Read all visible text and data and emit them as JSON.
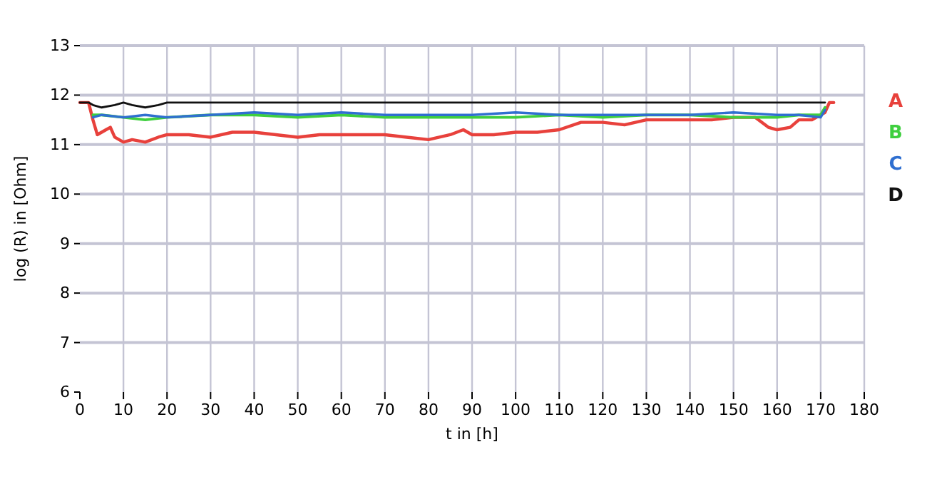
{
  "chart_data": {
    "type": "line",
    "xlabel": "t in [h]",
    "ylabel": "log (R) in [Ohm]",
    "xlim": [
      0,
      180
    ],
    "ylim": [
      6,
      13
    ],
    "xticks": [
      0,
      10,
      20,
      30,
      40,
      50,
      60,
      70,
      80,
      90,
      100,
      110,
      120,
      130,
      140,
      150,
      160,
      170,
      180
    ],
    "yticks": [
      6,
      7,
      8,
      9,
      10,
      11,
      12,
      13
    ],
    "grid": true,
    "legend": "right",
    "marker": "none",
    "line_style": "solid",
    "series": [
      {
        "name": "A",
        "color": "#e8413c",
        "x": [
          0,
          2,
          3,
          4,
          6,
          7,
          8,
          10,
          12,
          15,
          18,
          20,
          25,
          30,
          35,
          40,
          45,
          50,
          55,
          60,
          65,
          70,
          75,
          80,
          85,
          88,
          90,
          95,
          100,
          105,
          110,
          115,
          120,
          125,
          130,
          135,
          140,
          145,
          150,
          155,
          158,
          160,
          163,
          165,
          168,
          170,
          171,
          172,
          173
        ],
        "values": [
          11.85,
          11.85,
          11.5,
          11.2,
          11.3,
          11.35,
          11.15,
          11.05,
          11.1,
          11.05,
          11.15,
          11.2,
          11.2,
          11.15,
          11.25,
          11.25,
          11.2,
          11.15,
          11.2,
          11.2,
          11.2,
          11.2,
          11.15,
          11.1,
          11.2,
          11.3,
          11.2,
          11.2,
          11.25,
          11.25,
          11.3,
          11.45,
          11.45,
          11.4,
          11.5,
          11.5,
          11.5,
          11.5,
          11.55,
          11.55,
          11.35,
          11.3,
          11.35,
          11.5,
          11.5,
          11.6,
          11.65,
          11.85,
          11.85
        ]
      },
      {
        "name": "B",
        "color": "#3fcf3f",
        "x": [
          3,
          5,
          10,
          15,
          20,
          30,
          40,
          50,
          60,
          70,
          80,
          90,
          100,
          110,
          120,
          130,
          140,
          150,
          160,
          165,
          170,
          171
        ],
        "values": [
          11.6,
          11.6,
          11.55,
          11.5,
          11.55,
          11.6,
          11.6,
          11.55,
          11.6,
          11.55,
          11.55,
          11.55,
          11.55,
          11.6,
          11.55,
          11.6,
          11.6,
          11.55,
          11.55,
          11.6,
          11.6,
          11.75
        ]
      },
      {
        "name": "C",
        "color": "#2f6fd0",
        "x": [
          3,
          5,
          10,
          15,
          20,
          30,
          40,
          50,
          60,
          70,
          80,
          90,
          100,
          110,
          120,
          130,
          140,
          150,
          160,
          165,
          170,
          171
        ],
        "values": [
          11.55,
          11.6,
          11.55,
          11.6,
          11.55,
          11.6,
          11.65,
          11.6,
          11.65,
          11.6,
          11.6,
          11.6,
          11.65,
          11.6,
          11.6,
          11.6,
          11.6,
          11.65,
          11.6,
          11.6,
          11.55,
          11.7
        ]
      },
      {
        "name": "D",
        "color": "#111111",
        "x": [
          0,
          2,
          3,
          5,
          8,
          10,
          12,
          15,
          18,
          20,
          30,
          50,
          80,
          120,
          150,
          170,
          171
        ],
        "values": [
          11.85,
          11.85,
          11.8,
          11.75,
          11.8,
          11.85,
          11.8,
          11.75,
          11.8,
          11.85,
          11.85,
          11.85,
          11.85,
          11.85,
          11.85,
          11.85,
          11.85
        ]
      }
    ]
  }
}
